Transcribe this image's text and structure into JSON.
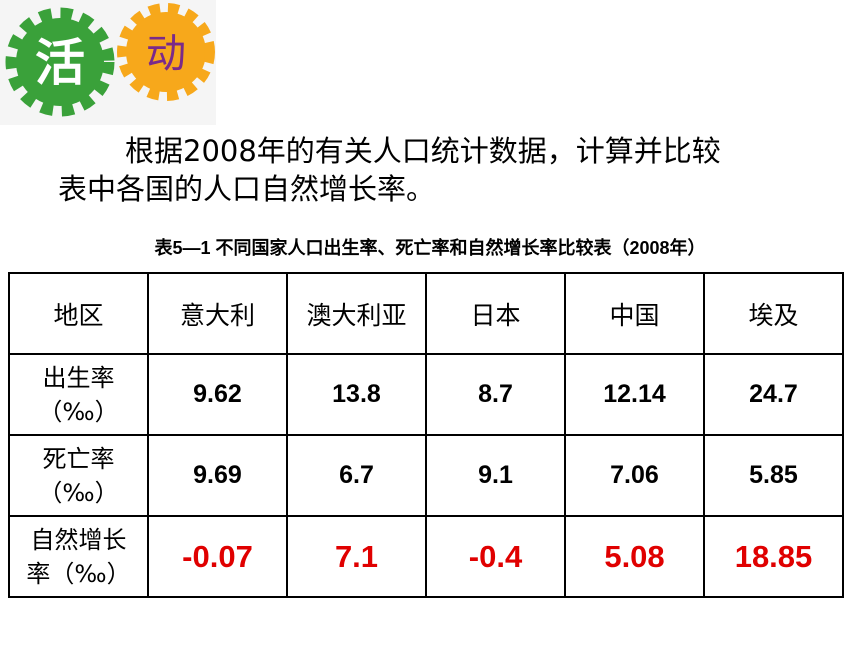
{
  "badge": {
    "left": "活",
    "right": "动"
  },
  "intro": {
    "lines": [
      "根据2008年的有关人口统计数据，计算并比较",
      "表中各国的人口自然增长率。"
    ]
  },
  "table": {
    "caption": "表5—1  不同国家人口出生率、死亡率和自然增长率比较表（2008年）",
    "header": [
      "地区",
      "意大利",
      "澳大利亚",
      "日本",
      "中国",
      "埃及"
    ],
    "rows": [
      {
        "label": [
          "出生率",
          "（‰）"
        ],
        "values": [
          "9.62",
          "13.8",
          "8.7",
          "12.14",
          "24.7"
        ]
      },
      {
        "label": [
          "死亡率",
          "（‰）"
        ],
        "values": [
          "9.69",
          "6.7",
          "9.1",
          "7.06",
          "5.85"
        ]
      },
      {
        "label": [
          "自然增长",
          "率（‰）"
        ],
        "values": [
          "-0.07",
          "7.1",
          "-0.4",
          "5.08",
          "18.85"
        ]
      }
    ]
  }
}
